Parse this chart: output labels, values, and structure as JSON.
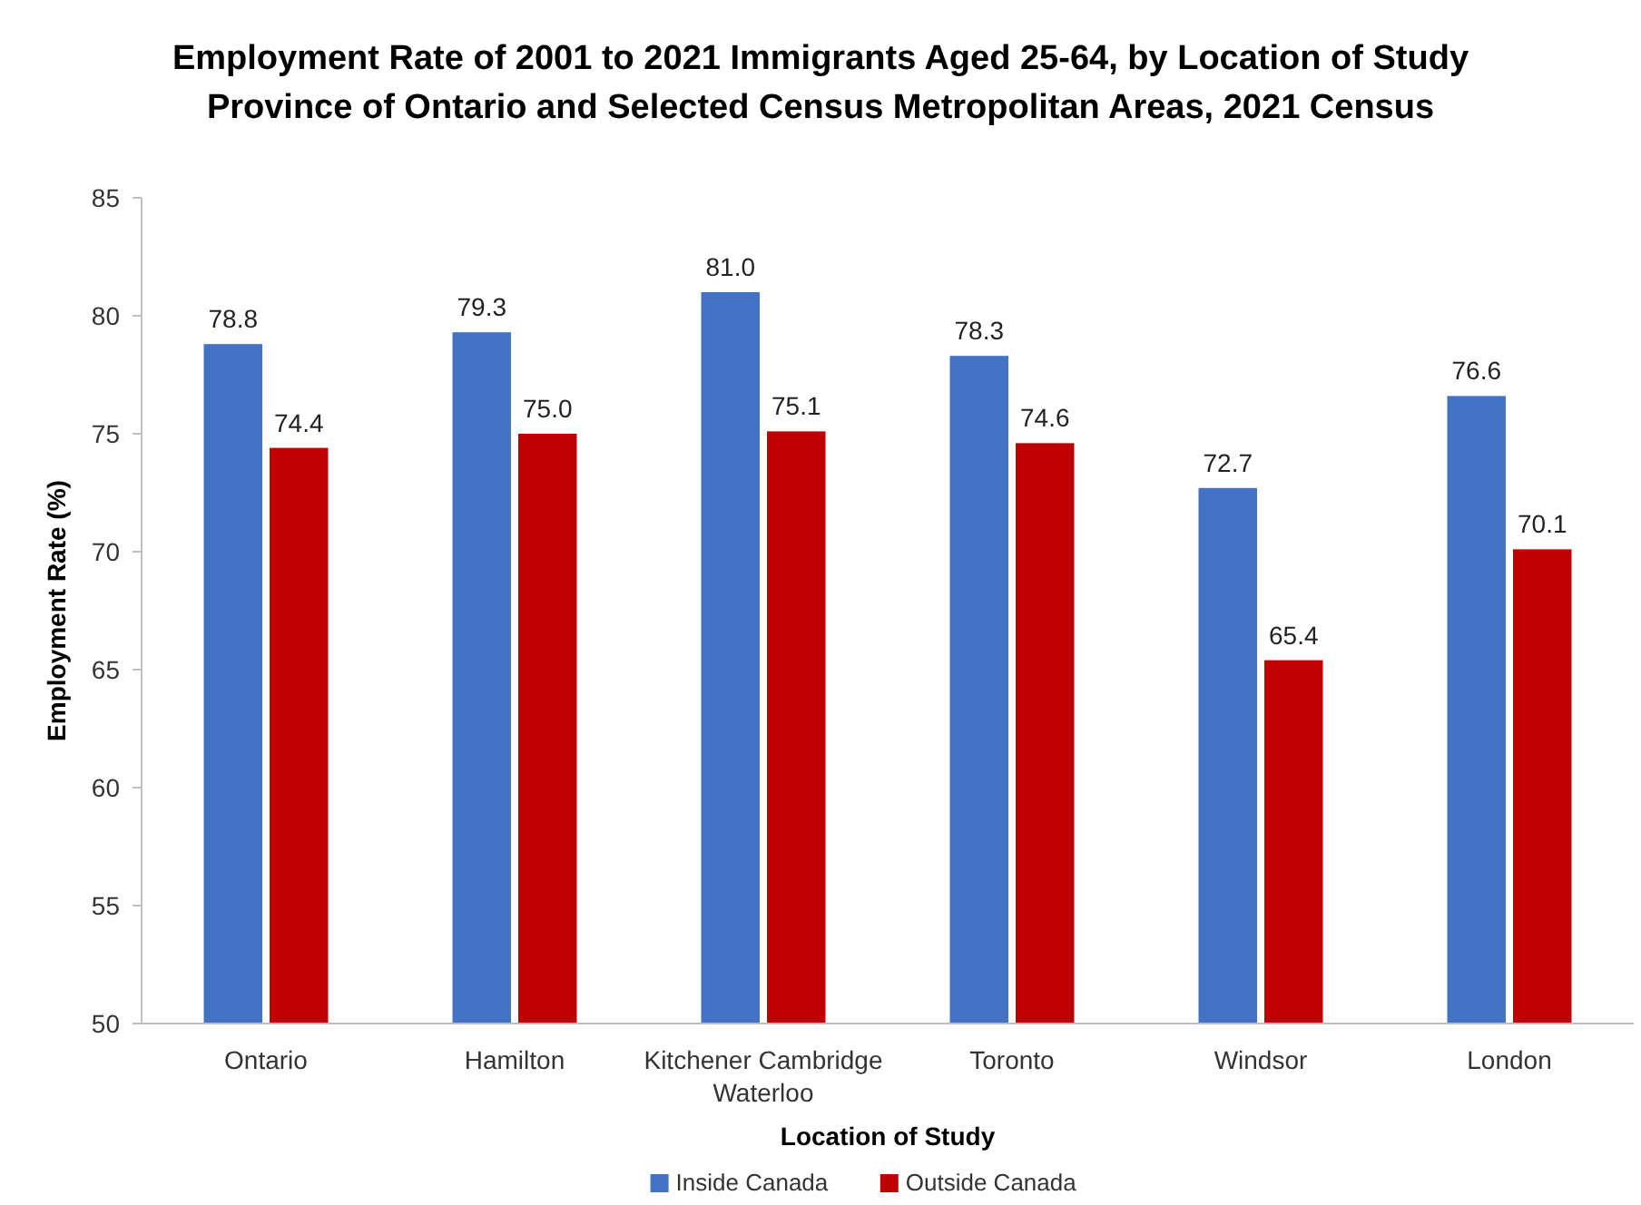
{
  "chart_data": {
    "type": "bar",
    "title": "Employment Rate of 2001 to 2021 Immigrants Aged 25-64, by Location of Study",
    "subtitle": "Province of Ontario and Selected Census Metropolitan Areas, 2021 Census",
    "xlabel": "Location of Study",
    "ylabel": "Employment Rate (%)",
    "categories": [
      "Ontario",
      "Hamilton",
      "Kitchener Cambridge Waterloo",
      "Toronto",
      "Windsor",
      "London"
    ],
    "series": [
      {
        "name": "Inside Canada",
        "color": "#4472c4",
        "values": [
          78.8,
          79.3,
          81.0,
          78.3,
          72.7,
          76.6
        ],
        "value_labels": [
          "78.8",
          "79.3",
          "81.0",
          "78.3",
          "72.7",
          "76.6"
        ]
      },
      {
        "name": "Outside Canada",
        "color": "#c00000",
        "values": [
          74.4,
          75.0,
          75.1,
          74.6,
          65.4,
          70.1
        ],
        "value_labels": [
          "74.4",
          "75.0",
          "75.1",
          "74.6",
          "65.4",
          "70.1"
        ]
      }
    ],
    "ylim": [
      50,
      85
    ],
    "yticks": [
      50,
      55,
      60,
      65,
      70,
      75,
      80,
      85
    ],
    "grid": false,
    "legend": "bottom"
  }
}
